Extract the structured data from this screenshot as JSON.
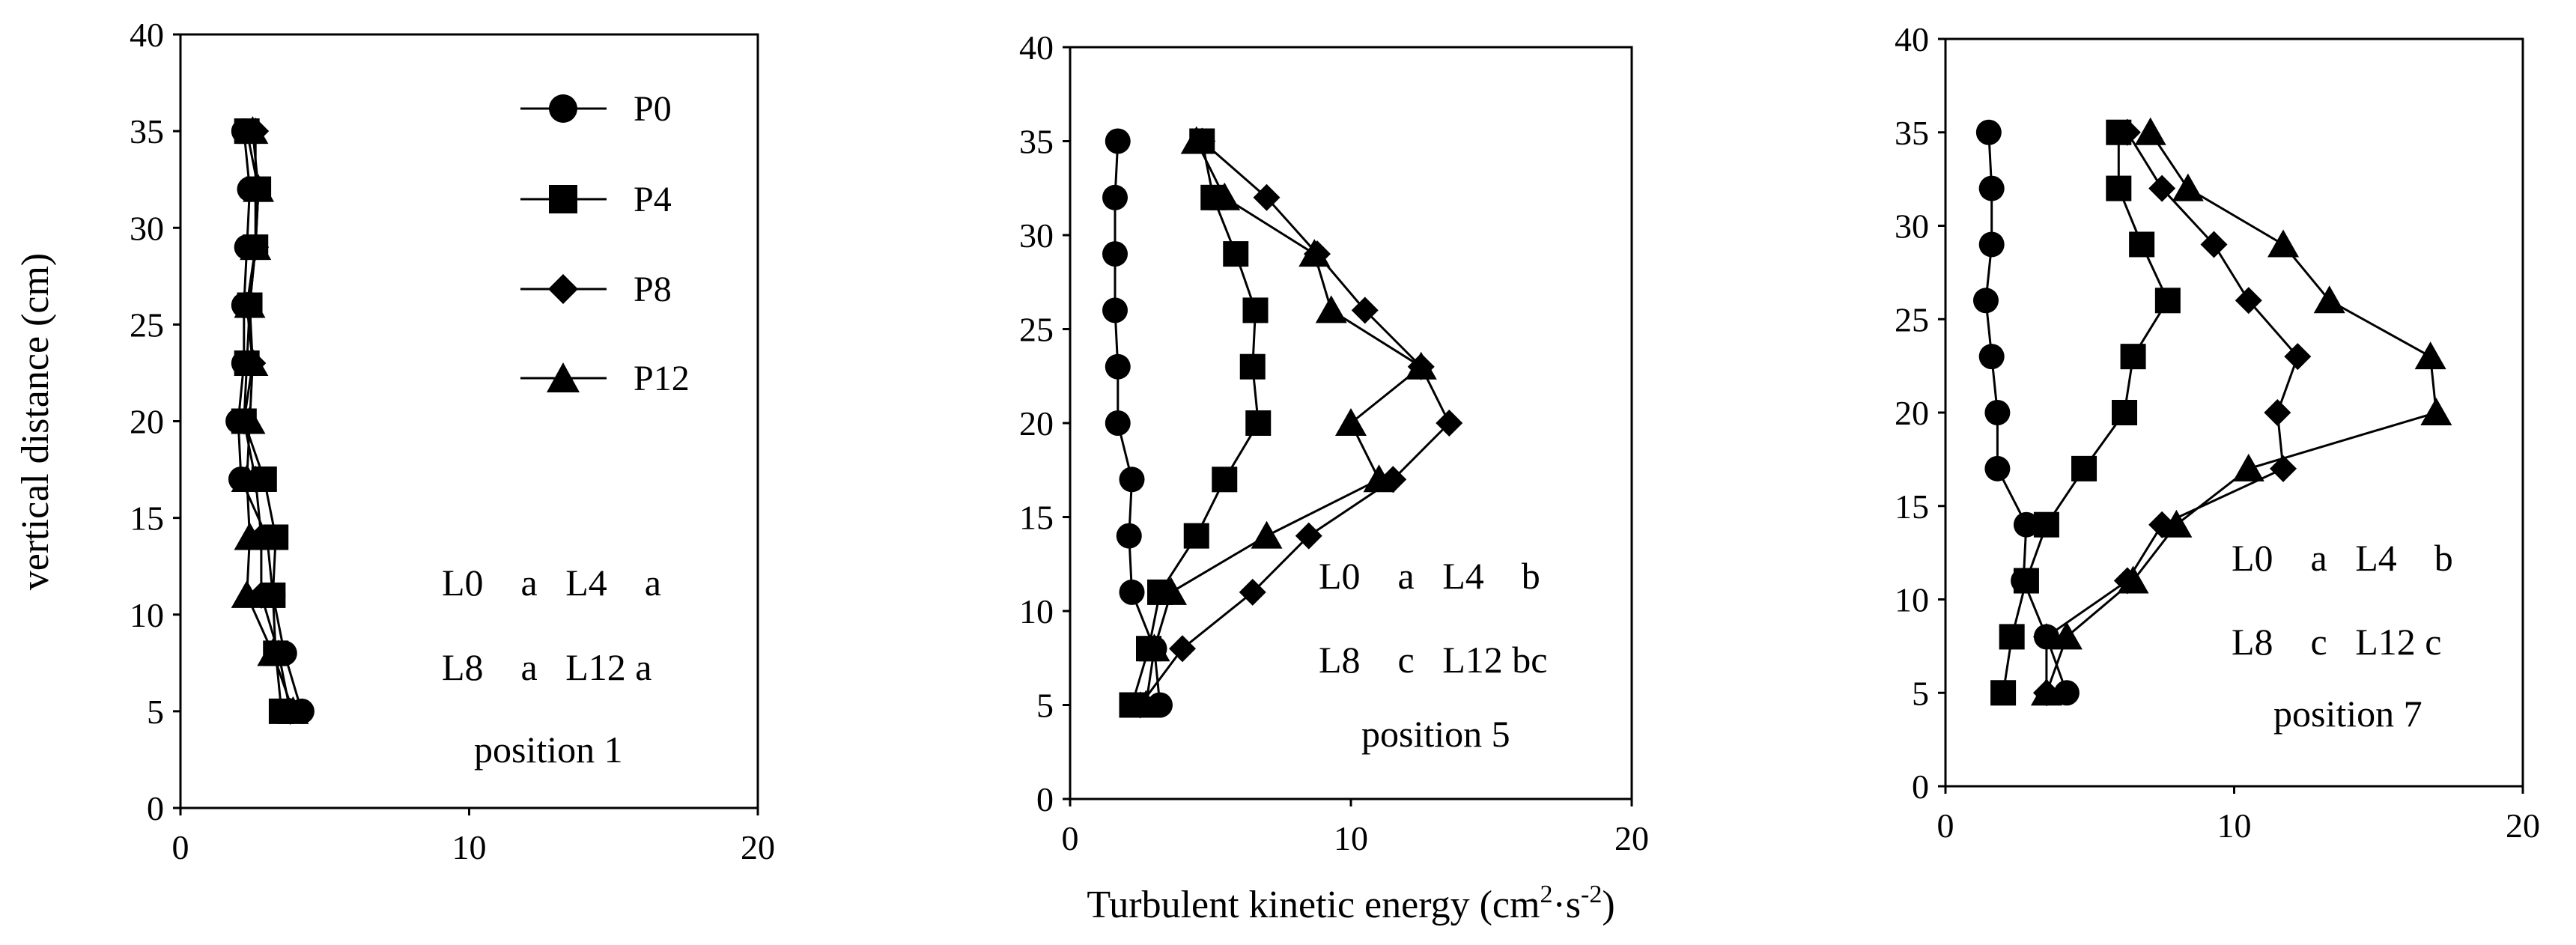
{
  "chart_data": [
    {
      "type": "line",
      "orientation": "profile",
      "xlim": [
        0,
        20
      ],
      "ylim": [
        0,
        40
      ],
      "xticks": [
        "0",
        "10",
        "20"
      ],
      "yticks": [
        "0",
        "5",
        "10",
        "15",
        "20",
        "25",
        "30",
        "35",
        "40"
      ],
      "xlabel": "",
      "ylabel": "vertical distance (cm)",
      "legend": {
        "placement": "top-right",
        "entries": [
          "P0",
          "P4",
          "P8",
          "P12"
        ]
      },
      "annotations": [
        "L0    a   L4    a",
        "L8    a   L12 a",
        "position 1"
      ],
      "series": [
        {
          "name": "P0",
          "marker": "circle",
          "x": [
            4.2,
            3.6,
            3.2,
            3.0,
            2.1,
            2.0,
            2.2,
            2.2,
            2.3,
            2.4,
            2.2
          ],
          "y": [
            5,
            8,
            11,
            14,
            17,
            20,
            23,
            26,
            29,
            32,
            35
          ]
        },
        {
          "name": "P4",
          "marker": "square",
          "x": [
            3.5,
            3.3,
            3.2,
            3.3,
            2.9,
            2.2,
            2.3,
            2.4,
            2.6,
            2.7,
            2.3
          ],
          "y": [
            5,
            8,
            11,
            14,
            17,
            20,
            23,
            26,
            29,
            32,
            35
          ]
        },
        {
          "name": "P8",
          "marker": "diamond",
          "x": [
            3.8,
            3.4,
            2.8,
            2.8,
            2.6,
            2.2,
            2.5,
            2.3,
            2.6,
            2.6,
            2.6
          ],
          "y": [
            5,
            8,
            11,
            14,
            17,
            20,
            23,
            26,
            29,
            32,
            35
          ]
        },
        {
          "name": "P12",
          "marker": "triangle",
          "x": [
            3.9,
            3.2,
            2.3,
            2.4,
            2.3,
            2.4,
            2.5,
            2.4,
            2.6,
            2.7,
            2.5
          ],
          "y": [
            5,
            8,
            11,
            14,
            17,
            20,
            23,
            26,
            29,
            32,
            35
          ]
        }
      ]
    },
    {
      "type": "line",
      "orientation": "profile",
      "xlim": [
        0,
        20
      ],
      "ylim": [
        0,
        40
      ],
      "xticks": [
        "0",
        "10",
        "20"
      ],
      "yticks": [
        "0",
        "5",
        "10",
        "15",
        "20",
        "25",
        "30",
        "35",
        "40"
      ],
      "xlabel_text": "Turbulent kinetic energy (cm",
      "xlabel_sup1": "2",
      "xlabel_mid": "·s",
      "xlabel_sup2": "-2",
      "xlabel_end": ")",
      "ylabel": "",
      "annotations": [
        "L0    a   L4    b",
        "L8    c   L12 bc",
        "position 5"
      ],
      "series": [
        {
          "name": "P0",
          "marker": "circle",
          "x": [
            3.2,
            3.0,
            2.2,
            2.1,
            2.2,
            1.7,
            1.7,
            1.6,
            1.6,
            1.6,
            1.7
          ],
          "y": [
            5,
            8,
            11,
            14,
            17,
            20,
            23,
            26,
            29,
            32,
            35
          ]
        },
        {
          "name": "P4",
          "marker": "square",
          "x": [
            2.2,
            2.8,
            3.2,
            4.5,
            5.5,
            6.7,
            6.5,
            6.6,
            5.9,
            5.1,
            4.7
          ],
          "y": [
            5,
            8,
            11,
            14,
            17,
            20,
            23,
            26,
            29,
            32,
            35
          ]
        },
        {
          "name": "P8",
          "marker": "diamond",
          "x": [
            2.5,
            4.0,
            6.5,
            8.5,
            11.5,
            13.5,
            12.5,
            10.5,
            8.8,
            7.0,
            4.7
          ],
          "y": [
            5,
            8,
            11,
            14,
            17,
            20,
            23,
            26,
            29,
            32,
            35
          ]
        },
        {
          "name": "P12",
          "marker": "triangle",
          "x": [
            2.7,
            3.0,
            3.6,
            7.0,
            11.0,
            10.0,
            12.5,
            9.3,
            8.7,
            5.5,
            4.5
          ],
          "y": [
            5,
            8,
            11,
            14,
            17,
            20,
            23,
            26,
            29,
            32,
            35
          ]
        }
      ]
    },
    {
      "type": "line",
      "orientation": "profile",
      "xlim": [
        0,
        20
      ],
      "ylim": [
        0,
        40
      ],
      "xticks": [
        "0",
        "10",
        "20"
      ],
      "yticks": [
        "0",
        "5",
        "10",
        "15",
        "20",
        "25",
        "30",
        "35",
        "40"
      ],
      "xlabel": "",
      "ylabel": "",
      "annotations": [
        "L0    a   L4    b",
        "L8    c   L12 c",
        "position 7"
      ],
      "series": [
        {
          "name": "P0",
          "marker": "circle",
          "x": [
            4.2,
            3.5,
            2.7,
            2.8,
            1.8,
            1.8,
            1.6,
            1.4,
            1.6,
            1.6,
            1.5
          ],
          "y": [
            5,
            8,
            11,
            14,
            17,
            20,
            23,
            26,
            29,
            32,
            35
          ]
        },
        {
          "name": "P4",
          "marker": "square",
          "x": [
            2.0,
            2.3,
            2.8,
            3.5,
            4.8,
            6.2,
            6.5,
            7.7,
            6.8,
            6.0,
            6.0
          ],
          "y": [
            5,
            8,
            11,
            14,
            17,
            20,
            23,
            26,
            29,
            32,
            35
          ]
        },
        {
          "name": "P8",
          "marker": "diamond",
          "x": [
            3.5,
            3.5,
            6.3,
            7.5,
            11.7,
            11.5,
            12.2,
            10.5,
            9.3,
            7.5,
            6.3
          ],
          "y": [
            5,
            8,
            11,
            14,
            17,
            20,
            23,
            26,
            29,
            32,
            35
          ]
        },
        {
          "name": "P12",
          "marker": "triangle",
          "x": [
            3.5,
            4.2,
            6.5,
            8.0,
            10.5,
            17.0,
            16.8,
            13.3,
            11.7,
            8.4,
            7.1
          ],
          "y": [
            5,
            8,
            11,
            14,
            17,
            20,
            23,
            26,
            29,
            32,
            35
          ]
        }
      ]
    }
  ]
}
